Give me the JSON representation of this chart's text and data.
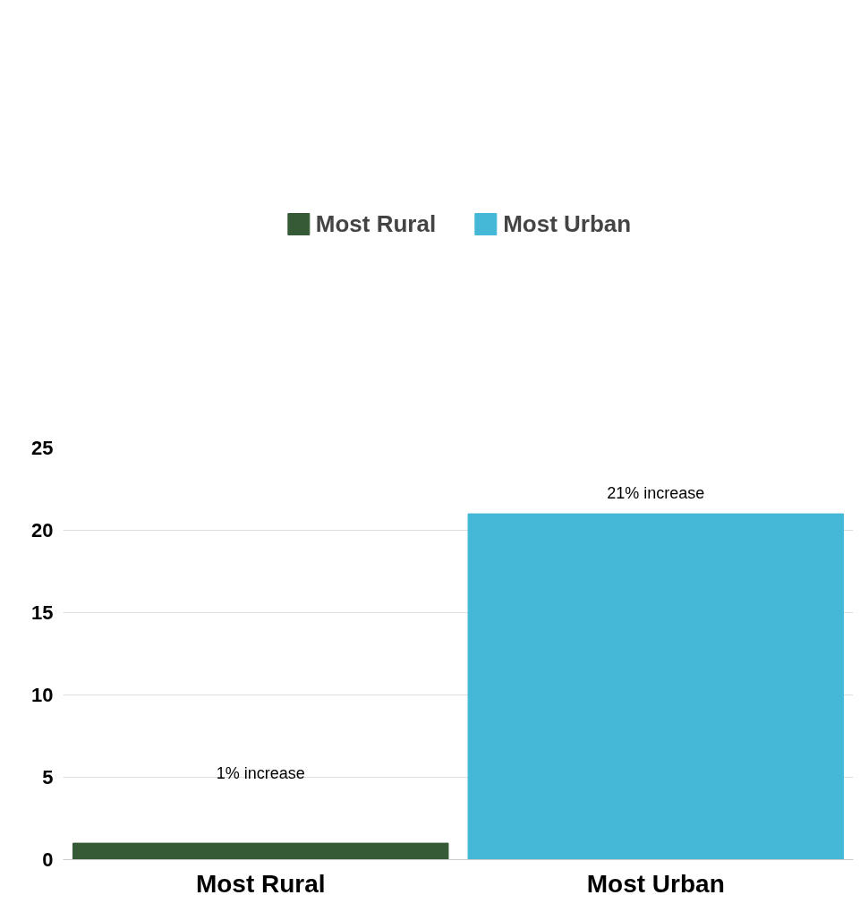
{
  "chart_data": {
    "type": "bar",
    "categories": [
      "Most Rural",
      "Most Urban"
    ],
    "series": [
      {
        "name": "Most Rural",
        "color": "#365a35",
        "values": [
          1,
          null
        ]
      },
      {
        "name": "Most Urban",
        "color": "#44b8d6",
        "values": [
          null,
          21
        ]
      }
    ],
    "ylim": [
      0,
      25
    ],
    "yticks": [
      0,
      5,
      10,
      15,
      20,
      25
    ],
    "grid": "y",
    "legend": "top",
    "annotations": [
      "1% increase",
      "21% increase"
    ]
  }
}
